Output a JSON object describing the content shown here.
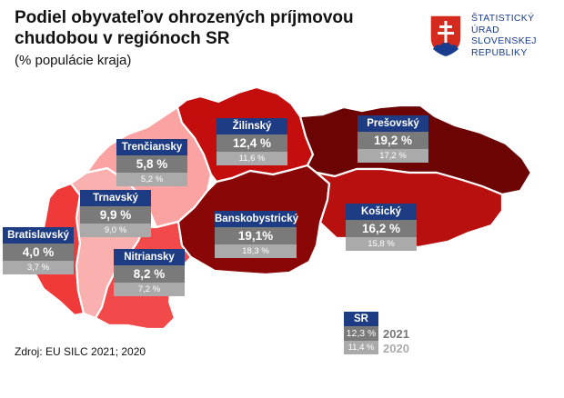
{
  "title": "Podiel obyvateľov ohrozených príjmovou chudobou v regiónoch SR",
  "subtitle": "(% populácie kraja)",
  "logo": {
    "lines": [
      "ŠTATISTICKÝ",
      "ÚRAD",
      "SLOVENSKEJ",
      "REPUBLIKY"
    ]
  },
  "regions": [
    {
      "name": "Bratislavský",
      "value_2021": "4,0 %",
      "value_2020": "3,7 %",
      "color": "#f03a3a"
    },
    {
      "name": "Trnavský",
      "value_2021": "9,9 %",
      "value_2020": "9,0 %",
      "color": "#fbb0b0"
    },
    {
      "name": "Trenčiansky",
      "value_2021": "5,8 %",
      "value_2020": "5,2 %",
      "color": "#fba3a3"
    },
    {
      "name": "Nitriansky",
      "value_2021": "8,2 %",
      "value_2020": "7,2 %",
      "color": "#f24a4a"
    },
    {
      "name": "Žilinský",
      "value_2021": "12,4 %",
      "value_2020": "11,6 %",
      "color": "#c40e0e"
    },
    {
      "name": "Banskobystrický",
      "value_2021": "19,1%",
      "value_2020": "18,3 %",
      "color": "#8a0707"
    },
    {
      "name": "Prešovský",
      "value_2021": "19,2 %",
      "value_2020": "17,2 %",
      "color": "#6c0404"
    },
    {
      "name": "Košický",
      "value_2021": "16,2 %",
      "value_2020": "15,8 %",
      "color": "#b80f0f"
    }
  ],
  "sr": {
    "name": "SR",
    "value_2021": "12,3 %",
    "value_2020": "11,4 %"
  },
  "years": {
    "y2021": "2021",
    "y2020": "2020"
  },
  "source": "Zdroj: EU SILC 2021; 2020"
}
